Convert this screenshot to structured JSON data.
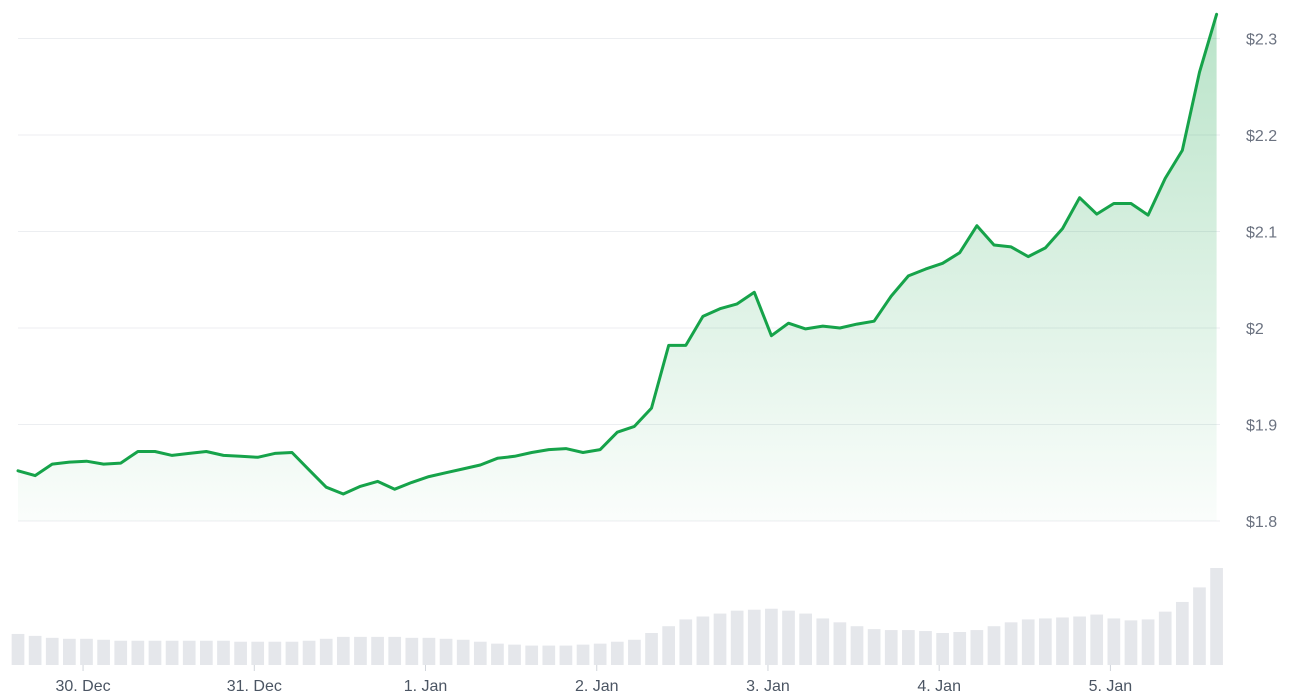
{
  "chart_data": {
    "type": "line",
    "x": [
      -0.38,
      -0.28,
      -0.18,
      -0.08,
      0.02,
      0.12,
      0.22,
      0.32,
      0.42,
      0.52,
      0.62,
      0.72,
      0.82,
      0.92,
      1.02,
      1.12,
      1.22,
      1.32,
      1.42,
      1.52,
      1.62,
      1.72,
      1.82,
      1.92,
      2.02,
      2.12,
      2.22,
      2.32,
      2.42,
      2.52,
      2.62,
      2.72,
      2.82,
      2.92,
      3.02,
      3.12,
      3.22,
      3.32,
      3.42,
      3.52,
      3.62,
      3.72,
      3.82,
      3.92,
      4.02,
      4.12,
      4.22,
      4.32,
      4.42,
      4.52,
      4.62,
      4.72,
      4.82,
      4.92,
      5.02,
      5.12,
      5.22,
      5.32,
      5.42,
      5.52,
      5.62,
      5.72,
      5.82,
      5.92,
      6.02,
      6.12,
      6.22,
      6.32,
      6.42,
      6.52,
      6.62
    ],
    "series": [
      {
        "name": "Price",
        "color": "#16a34a",
        "values": [
          1.852,
          1.847,
          1.859,
          1.861,
          1.862,
          1.859,
          1.86,
          1.872,
          1.872,
          1.868,
          1.87,
          1.872,
          1.868,
          1.867,
          1.866,
          1.87,
          1.871,
          1.853,
          1.835,
          1.828,
          1.836,
          1.841,
          1.833,
          1.84,
          1.846,
          1.85,
          1.854,
          1.858,
          1.865,
          1.867,
          1.871,
          1.874,
          1.875,
          1.871,
          1.874,
          1.892,
          1.898,
          1.917,
          1.982,
          1.982,
          2.012,
          2.02,
          2.025,
          2.037,
          1.992,
          2.005,
          1.999,
          2.002,
          2.0,
          2.004,
          2.007,
          2.033,
          2.054,
          2.061,
          2.067,
          2.078,
          2.106,
          2.086,
          2.084,
          2.074,
          2.083,
          2.103,
          2.135,
          2.118,
          2.129,
          2.129,
          2.117,
          2.155,
          2.184,
          2.265,
          2.325
        ]
      },
      {
        "name": "Volume",
        "color": "#e5e7eb",
        "axis": "y2",
        "values": [
          32,
          30,
          28,
          27,
          27,
          26,
          25,
          25,
          25,
          25,
          25,
          25,
          25,
          24,
          24,
          24,
          24,
          25,
          27,
          29,
          29,
          29,
          29,
          28,
          28,
          27,
          26,
          24,
          22,
          21,
          20,
          20,
          20,
          21,
          22,
          24,
          26,
          33,
          40,
          47,
          50,
          53,
          56,
          57,
          58,
          56,
          53,
          48,
          44,
          40,
          37,
          36,
          36,
          35,
          33,
          34,
          36,
          40,
          44,
          47,
          48,
          49,
          50,
          52,
          48,
          46,
          47,
          55,
          65,
          80,
          100
        ]
      }
    ],
    "xlim": [
      -0.38,
      6.64
    ],
    "xticks": [
      {
        "value": 0,
        "label": "30. Dec"
      },
      {
        "value": 1,
        "label": "31. Dec"
      },
      {
        "value": 2,
        "label": "1. Jan"
      },
      {
        "value": 3,
        "label": "2. Jan"
      },
      {
        "value": 4,
        "label": "3. Jan"
      },
      {
        "value": 5,
        "label": "4. Jan"
      },
      {
        "value": 6,
        "label": "5. Jan"
      }
    ],
    "ylim": [
      1.8,
      2.33
    ],
    "yticks": [
      {
        "value": 1.8,
        "label": "$1.8"
      },
      {
        "value": 1.9,
        "label": "$1.9"
      },
      {
        "value": 2,
        "label": "$2"
      },
      {
        "value": 2.1,
        "label": "$2.1"
      },
      {
        "value": 2.2,
        "label": "$2.2"
      },
      {
        "value": 2.3,
        "label": "$2.3"
      }
    ],
    "y2lim": [
      0,
      100
    ],
    "grid": true
  }
}
